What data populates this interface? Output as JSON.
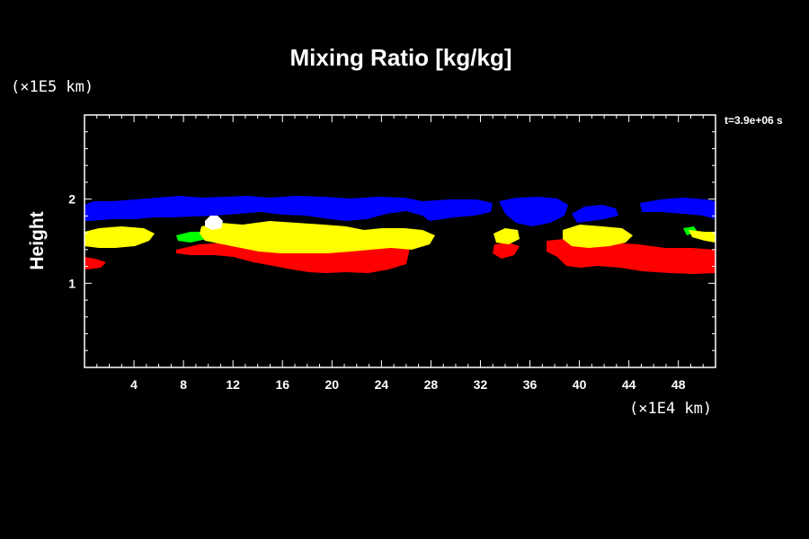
{
  "chart_data": {
    "type": "heatmap",
    "title": "Mixing Ratio [kg/kg]",
    "ylabel": "Height",
    "y_unit": "(×1E5 km)",
    "x_unit": "(×1E4 km)",
    "time_label": "t=3.9e+06 s",
    "xlim": [
      0,
      51
    ],
    "ylim": [
      0,
      3
    ],
    "x_ticks": [
      4,
      8,
      12,
      16,
      20,
      24,
      28,
      32,
      36,
      40,
      44,
      48
    ],
    "x_tick_labels": [
      "4",
      "8",
      "12",
      "16",
      "20",
      "24",
      "28",
      "32",
      "36",
      "40",
      "44",
      "48"
    ],
    "y_ticks": [
      1,
      2
    ],
    "y_tick_labels": [
      "1",
      "2"
    ],
    "grid": false,
    "colors": {
      "background": "#000000",
      "blue": "#0000ff",
      "green": "#00ff00",
      "yellow": "#ffff00",
      "red": "#ff0000",
      "white": "#ffffff"
    },
    "regions": [
      {
        "color": "blue",
        "x_range": [
          0.2,
          51
        ],
        "y_range": [
          1.72,
          2.02
        ],
        "label": ""
      },
      {
        "color": "yellow",
        "x_range": [
          0.2,
          28
        ],
        "y_range": [
          1.42,
          1.74
        ],
        "label": ""
      },
      {
        "color": "green",
        "x_range": [
          8,
          27
        ],
        "y_range": [
          1.45,
          1.62
        ],
        "label": ""
      },
      {
        "color": "red",
        "x_range": [
          0.2,
          27
        ],
        "y_range": [
          1.12,
          1.48
        ],
        "label": ""
      },
      {
        "color": "yellow",
        "x_range": [
          33,
          35
        ],
        "y_range": [
          1.48,
          1.65
        ],
        "label": ""
      },
      {
        "color": "yellow",
        "x_range": [
          38,
          44
        ],
        "y_range": [
          1.45,
          1.7
        ],
        "label": ""
      },
      {
        "color": "red",
        "x_range": [
          33,
          51
        ],
        "y_range": [
          1.13,
          1.5
        ],
        "label": ""
      },
      {
        "color": "white",
        "x_range": [
          10,
          11.5
        ],
        "y_range": [
          1.62,
          1.8
        ],
        "label": ""
      }
    ]
  }
}
